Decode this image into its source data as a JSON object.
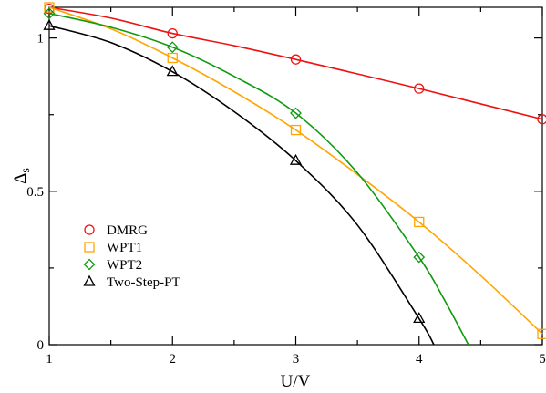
{
  "chart_data": {
    "type": "line",
    "title": "",
    "xlabel": "U/V",
    "ylabel": "Δ",
    "ylabel_sub": "s",
    "xlim": [
      1,
      5
    ],
    "ylim": [
      0,
      1.1
    ],
    "xticks": [
      1,
      2,
      3,
      4,
      5
    ],
    "xtick_labels": [
      "1",
      "2",
      "3",
      "4",
      "5"
    ],
    "yticks": [
      0,
      0.5,
      1
    ],
    "ytick_labels": [
      "0",
      "0.5",
      "1"
    ],
    "grid": false,
    "legend": "center-left",
    "series": [
      {
        "name": "DMRG",
        "color": "#ee1111",
        "marker": "circle",
        "points": [
          [
            1,
            1.095
          ],
          [
            2,
            1.015
          ],
          [
            3,
            0.93
          ],
          [
            4,
            0.835
          ],
          [
            5,
            0.735
          ]
        ],
        "curve": [
          [
            1,
            1.1
          ],
          [
            1.5,
            1.065
          ],
          [
            2,
            1.015
          ],
          [
            2.5,
            0.975
          ],
          [
            3,
            0.93
          ],
          [
            3.5,
            0.883
          ],
          [
            4,
            0.835
          ],
          [
            4.5,
            0.785
          ],
          [
            5,
            0.735
          ]
        ]
      },
      {
        "name": "WPT1",
        "color": "#ffa500",
        "marker": "square",
        "points": [
          [
            1,
            1.1
          ],
          [
            2,
            0.935
          ],
          [
            3,
            0.7
          ],
          [
            4,
            0.4
          ],
          [
            5,
            0.035
          ]
        ],
        "curve": [
          [
            1,
            1.1
          ],
          [
            1.5,
            1.03
          ],
          [
            2,
            0.935
          ],
          [
            2.5,
            0.825
          ],
          [
            3,
            0.7
          ],
          [
            3.5,
            0.555
          ],
          [
            4,
            0.4
          ],
          [
            4.5,
            0.225
          ],
          [
            5,
            0.035
          ]
        ]
      },
      {
        "name": "WPT2",
        "color": "#119911",
        "marker": "diamond",
        "points": [
          [
            1,
            1.08
          ],
          [
            2,
            0.97
          ],
          [
            3,
            0.755
          ],
          [
            4,
            0.285
          ]
        ],
        "curve": [
          [
            1,
            1.08
          ],
          [
            1.5,
            1.035
          ],
          [
            2,
            0.97
          ],
          [
            2.5,
            0.875
          ],
          [
            3,
            0.755
          ],
          [
            3.5,
            0.56
          ],
          [
            4,
            0.285
          ],
          [
            4.2,
            0.15
          ],
          [
            4.4,
            0.0
          ]
        ]
      },
      {
        "name": "Two-Step-PT",
        "color": "#000000",
        "marker": "triangle",
        "points": [
          [
            1,
            1.04
          ],
          [
            2,
            0.89
          ],
          [
            3,
            0.6
          ],
          [
            4,
            0.085
          ]
        ],
        "curve": [
          [
            1,
            1.04
          ],
          [
            1.5,
            0.985
          ],
          [
            2,
            0.89
          ],
          [
            2.5,
            0.76
          ],
          [
            3,
            0.6
          ],
          [
            3.5,
            0.39
          ],
          [
            4,
            0.085
          ],
          [
            4.12,
            0.0
          ]
        ]
      }
    ]
  }
}
